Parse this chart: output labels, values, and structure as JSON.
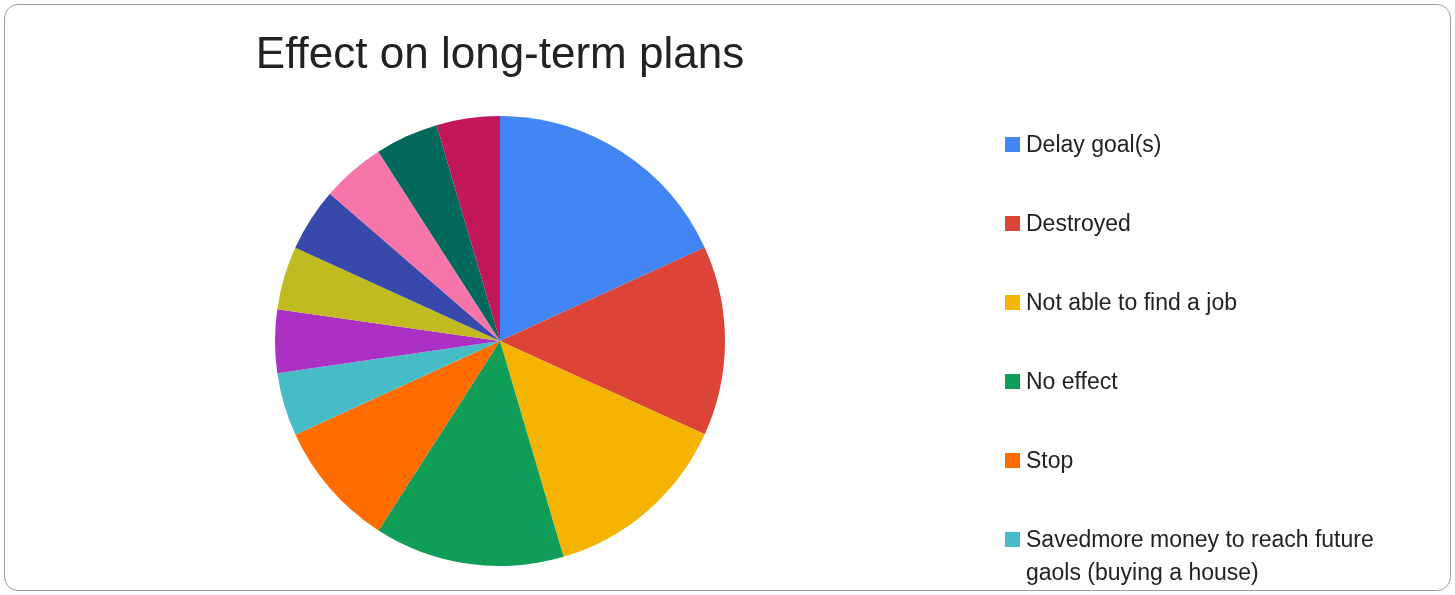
{
  "chart_data": {
    "type": "pie",
    "title": "Effect on long-term plans",
    "categories": [
      "Delay goal(s)",
      "Destroyed",
      "Not able to find a job",
      "No effect",
      "Stop",
      "Savedmore money to reach future gaols (buying a house)",
      null,
      null,
      null,
      null,
      null,
      null
    ],
    "values": [
      18.18,
      13.64,
      13.64,
      13.64,
      9.09,
      4.55,
      4.55,
      4.55,
      4.55,
      4.55,
      4.55,
      4.55
    ],
    "colors": [
      "#4285f4",
      "#db4437",
      "#f4b400",
      "#0f9d58",
      "#ff6d01",
      "#46bdc6",
      "#ab30c4",
      "#c0bb1f",
      "#3949ab",
      "#f776a9",
      "#00695c",
      "#c2185b"
    ],
    "legend": "right"
  }
}
